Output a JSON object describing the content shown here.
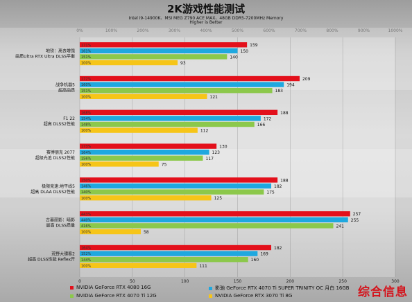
{
  "title": "2K游戏性能测试",
  "subtitle1": "Intel i9-14900K、MSI MEG Z790 ACE MAX、48GB DDR5-7200MHz Memory",
  "subtitle2": "Higher is Better",
  "watermark": "综合信息",
  "colors": {
    "rtx4080": "#e3101b",
    "rtx4070tis": "#1fa8df",
    "rtx4070ti": "#8cc84b",
    "rtx3070ti": "#f6c518"
  },
  "chart_data": {
    "type": "bar",
    "orientation": "horizontal",
    "title": "2K游戏性能测试",
    "bottom_axis": {
      "range": [
        0,
        300
      ],
      "ticks": [
        0,
        50,
        100,
        150,
        200,
        250,
        300
      ]
    },
    "top_axis": {
      "ticks": [
        "0%",
        "100%",
        "200%",
        "300%",
        "400%",
        "500%",
        "600%",
        "700%",
        "800%",
        "900%",
        "1000%"
      ]
    },
    "categories": [
      {
        "line1": "地铁：离去增强",
        "line2": "画质Ultra RTX Ultra DLSS平衡"
      },
      {
        "line1": "战争机器5",
        "line2": "超高画质"
      },
      {
        "line1": "F1 22",
        "line2": "超高 DLSS2性能"
      },
      {
        "line1": "赛博朋克 2077",
        "line2": "超级光追 DLSS2性能"
      },
      {
        "line1": "极限竞速:地平线5",
        "line2": "超高 DLAA DLSS2性能"
      },
      {
        "line1": "古墓丽影：暗影",
        "line2": "最高 DLSS质量"
      },
      {
        "line1": "荒野大镖客2",
        "line2": "超高 DLSS性能 Reflex开"
      }
    ],
    "series": [
      {
        "name": "NVIDIA GeForce RTX 4080 16G",
        "key": "rtx4080",
        "values": [
          159,
          209,
          188,
          130,
          188,
          257,
          182
        ],
        "percent_labels": [
          "171%",
          "172%",
          "168%",
          "173%",
          "150%",
          "443%",
          "164%"
        ]
      },
      {
        "name": "影驰 GeForce RTX 4070 Ti SUPER TRINITY OC 月白 16GB",
        "key": "rtx4070tis",
        "values": [
          150,
          194,
          172,
          123,
          182,
          255,
          169
        ],
        "percent_labels": [
          "161%",
          "160%",
          "154%",
          "164%",
          "146%",
          "440%",
          "152%"
        ]
      },
      {
        "name": "NVIDIA GeForce RTX 4070 Ti 12G",
        "key": "rtx4070ti",
        "values": [
          140,
          183,
          166,
          117,
          175,
          241,
          160
        ],
        "percent_labels": [
          "151%",
          "151%",
          "148%",
          "156%",
          "140%",
          "416%",
          "144%"
        ]
      },
      {
        "name": "NVIDIA GeForce RTX 3070 Ti 8G",
        "key": "rtx3070ti",
        "values": [
          93,
          121,
          112,
          75,
          125,
          58,
          111
        ],
        "percent_labels": [
          "100%",
          "100%",
          "100%",
          "100%",
          "100%",
          "100%",
          "100%"
        ]
      }
    ]
  }
}
